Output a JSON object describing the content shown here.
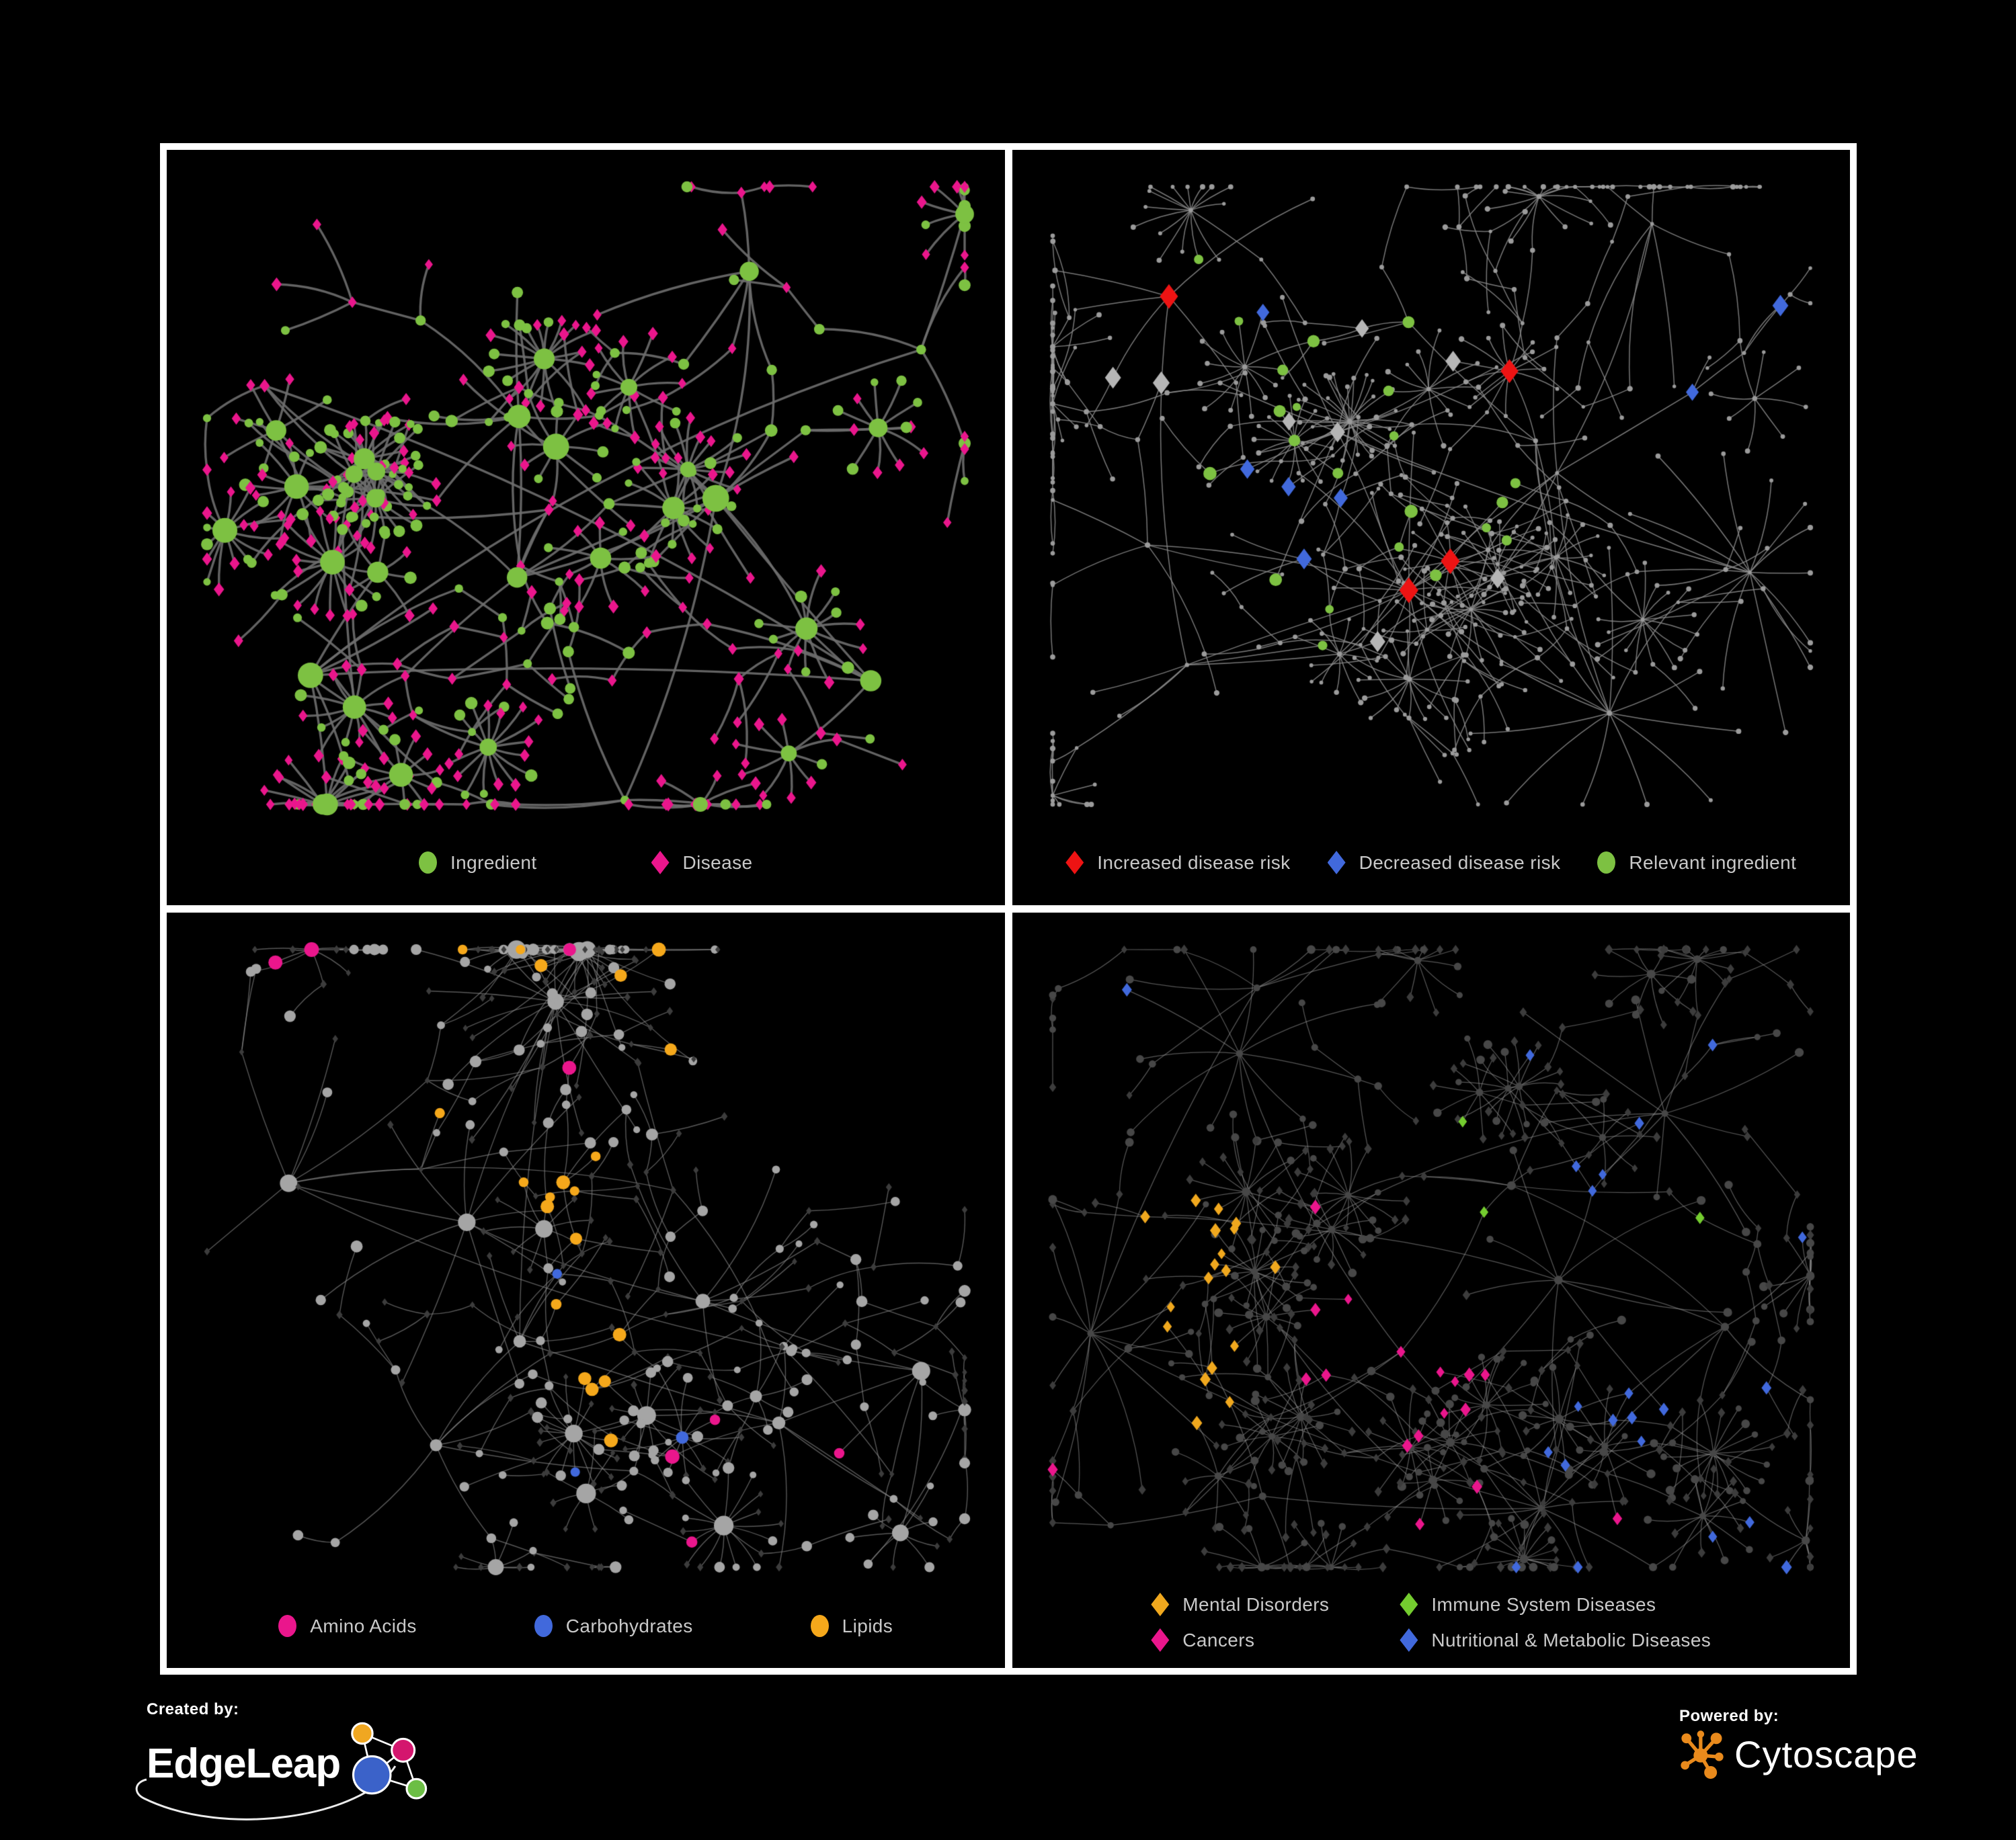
{
  "page": {
    "background": "#000000",
    "panel_border_color": "#FFFFFF",
    "legend_text_color": "#C9C9C9"
  },
  "panels": [
    {
      "id": "ingredient-disease",
      "legend": [
        {
          "label": "Ingredient",
          "shape": "circle",
          "color": "#7DC142"
        },
        {
          "label": "Disease",
          "shape": "diamond",
          "color": "#EA168C"
        }
      ],
      "network": {
        "style": "A",
        "seed": 11,
        "nodes": 480,
        "hubs": 9,
        "cross": 0.05,
        "edge_color": "#6E6E6E",
        "edge_width": 3.4,
        "edge_alpha": 0.9,
        "palette": {
          "ingredient": "#7DC142",
          "disease": "#EA168C"
        }
      }
    },
    {
      "id": "disease-risk",
      "legend": [
        {
          "label": "Increased disease risk",
          "shape": "diamond",
          "color": "#EE1313"
        },
        {
          "label": "Decreased disease risk",
          "shape": "diamond",
          "color": "#4169DC"
        },
        {
          "label": "Relevant ingredient",
          "shape": "circle",
          "color": "#7DC142"
        }
      ],
      "network": {
        "style": "B",
        "seed": 29,
        "nodes": 560,
        "hubs": 10,
        "cross": 0.045,
        "edge_color": "#8C8C8C",
        "edge_width": 1.5,
        "edge_alpha": 0.85,
        "palette": {
          "base": "#9B9B9B",
          "increased": "#EE1313",
          "decreased": "#4169DC",
          "neutral": "#B5B5B5",
          "ingredient": "#7DC142"
        }
      }
    },
    {
      "id": "ingredient-classes",
      "legend": [
        {
          "label": "Amino Acids",
          "shape": "circle",
          "color": "#EA168C"
        },
        {
          "label": "Carbohydrates",
          "shape": "circle",
          "color": "#4169DC"
        },
        {
          "label": "Lipids",
          "shape": "circle",
          "color": "#F5A81B"
        }
      ],
      "network": {
        "style": "C",
        "seed": 43,
        "nodes": 540,
        "hubs": 10,
        "cross": 0.05,
        "edge_color": "#8E8E8E",
        "edge_width": 1.4,
        "edge_alpha": 0.62,
        "palette": {
          "circle_base": "#A5A5A5",
          "diamond_base": "#3C3C3C",
          "amino_acids": "#EA168C",
          "carbohydrates": "#4169DC",
          "lipids": "#F5A81B"
        }
      }
    },
    {
      "id": "disease-classes",
      "legend": [
        {
          "label": "Mental Disorders",
          "shape": "diamond",
          "color": "#F0A81E"
        },
        {
          "label": "Immune System Diseases",
          "shape": "diamond",
          "color": "#74CC2F"
        },
        {
          "label": "Cancers",
          "shape": "diamond",
          "color": "#EA168C"
        },
        {
          "label": "Nutritional & Metabolic Diseases",
          "shape": "diamond",
          "color": "#4169DC"
        }
      ],
      "network": {
        "style": "D",
        "seed": 57,
        "nodes": 620,
        "hubs": 11,
        "cross": 0.05,
        "edge_color": "#9C9C9C",
        "edge_width": 1.25,
        "edge_alpha": 0.55,
        "palette": {
          "circle_base": "#474747",
          "diamond_base": "#3C3C3C",
          "mental": "#F0A81E",
          "immune": "#74CC2F",
          "cancers": "#EA168C",
          "metabolic": "#4169DC"
        }
      }
    }
  ],
  "footer": {
    "created_by": "Created by:",
    "brand": "EdgeLeap",
    "powered_by": "Powered by:",
    "engine": "Cytoscape",
    "edgeleap_colors": {
      "amber": "#F0A721",
      "pink": "#D4166E",
      "blue": "#3B62C9",
      "green": "#6CBE45"
    },
    "cytoscape_color": "#E98A1C"
  }
}
